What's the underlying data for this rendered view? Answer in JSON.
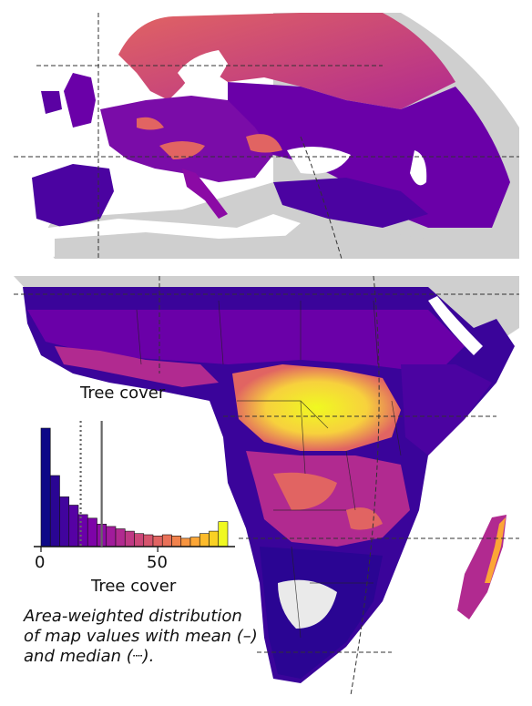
{
  "map": {
    "panels": [
      "europe",
      "africa"
    ],
    "colormap": "plasma",
    "colors": {
      "land_nodata": "#cfcfcf",
      "low": "#0d0887",
      "mid_low": "#6a00a8",
      "mid": "#b12a90",
      "mid_high": "#e16462",
      "high_orange": "#fca636",
      "high": "#f0f921",
      "borders": "#222222",
      "graticule": "#333333"
    }
  },
  "histogram": {
    "title": "Tree cover",
    "xlabel": "Tree cover",
    "ticks": [
      "0",
      "50"
    ],
    "mean_value": 26,
    "median_value": 17,
    "bin_width": 4,
    "bins": [
      {
        "x": 0,
        "h": 1.0
      },
      {
        "x": 4,
        "h": 0.6
      },
      {
        "x": 8,
        "h": 0.42
      },
      {
        "x": 12,
        "h": 0.35
      },
      {
        "x": 16,
        "h": 0.27
      },
      {
        "x": 20,
        "h": 0.24
      },
      {
        "x": 24,
        "h": 0.19
      },
      {
        "x": 28,
        "h": 0.17
      },
      {
        "x": 32,
        "h": 0.15
      },
      {
        "x": 36,
        "h": 0.13
      },
      {
        "x": 40,
        "h": 0.11
      },
      {
        "x": 44,
        "h": 0.1
      },
      {
        "x": 48,
        "h": 0.09
      },
      {
        "x": 52,
        "h": 0.1
      },
      {
        "x": 56,
        "h": 0.09
      },
      {
        "x": 60,
        "h": 0.07
      },
      {
        "x": 64,
        "h": 0.08
      },
      {
        "x": 68,
        "h": 0.11
      },
      {
        "x": 72,
        "h": 0.13
      },
      {
        "x": 76,
        "h": 0.21
      }
    ],
    "xlim": [
      0,
      80
    ]
  },
  "caption": {
    "line1": "Area-weighted distribution",
    "line2": "of map values with mean (–)",
    "line3": "and median (┈)."
  }
}
